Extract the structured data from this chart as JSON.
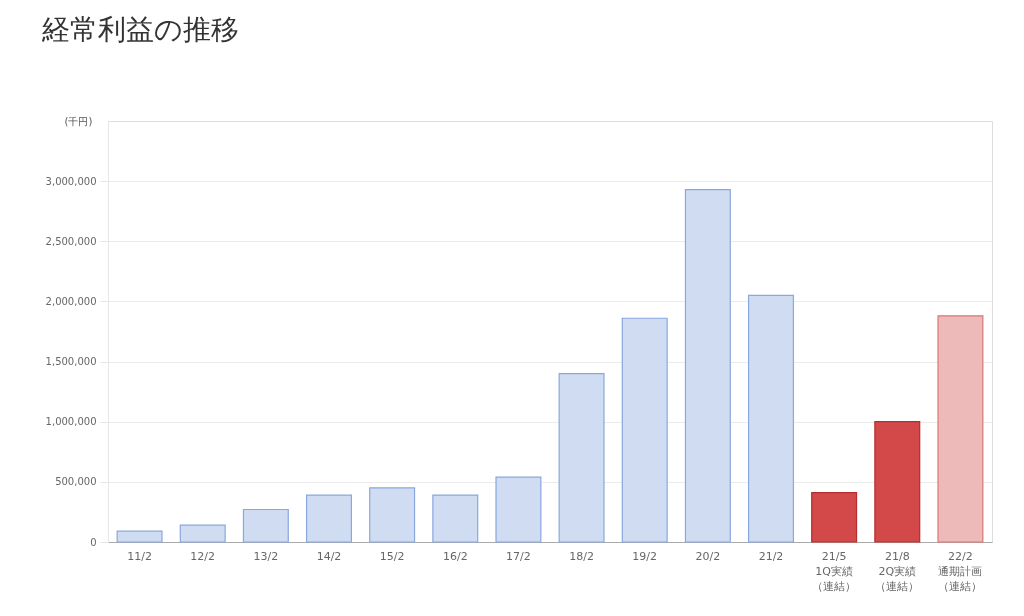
{
  "chart_data": {
    "type": "bar",
    "title": "経常利益の推移",
    "ylabel": "(千円)",
    "categories": [
      "11/2",
      "12/2",
      "13/2",
      "14/2",
      "15/2",
      "16/2",
      "17/2",
      "18/2",
      "19/2",
      "20/2",
      "21/2",
      "21/5\n1Q実績（連結）",
      "21/8\n2Q実績（連結）",
      "22/2\n通期計画（連結）"
    ],
    "values": [
      90000,
      140000,
      270000,
      390000,
      450000,
      390000,
      540000,
      1400000,
      1860000,
      2930000,
      2050000,
      410000,
      1000000,
      1880000
    ],
    "colors": [
      "#cfdcf2",
      "#cfdcf2",
      "#cfdcf2",
      "#cfdcf2",
      "#cfdcf2",
      "#cfdcf2",
      "#cfdcf2",
      "#cfdcf2",
      "#cfdcf2",
      "#cfdcf2",
      "#cfdcf2",
      "#d34848",
      "#d34848",
      "#edb9b9"
    ],
    "ylim": [
      0,
      3500000
    ],
    "yticks": [
      0,
      {
        "value": 500000,
        "label": "500,000"
      },
      {
        "value": 1000000,
        "label": "1,000,000"
      },
      {
        "value": 1500000,
        "label": "1,500,000"
      },
      {
        "value": 2000000,
        "label": "2,000,000"
      },
      {
        "value": 2500000,
        "label": "2,500,000"
      },
      {
        "value": 3000000,
        "label": "3,000,000"
      }
    ],
    "grid": "y"
  }
}
